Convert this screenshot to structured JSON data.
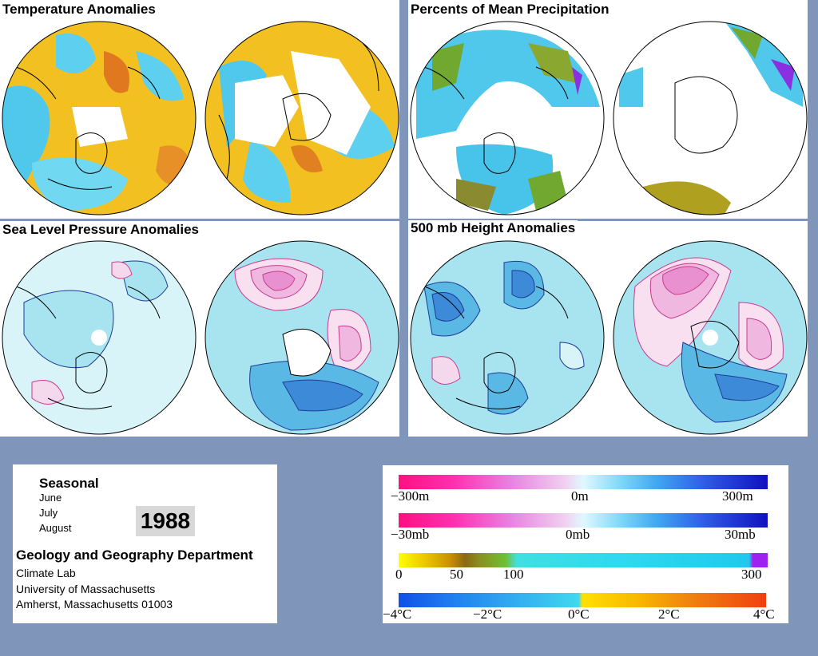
{
  "panels": {
    "temperature": {
      "title": "Temperature Anomalies"
    },
    "precipitation": {
      "title": "Percents of Mean Precipitation"
    },
    "slp": {
      "title": "Sea Level Pressure Anomalies"
    },
    "height500": {
      "title": "500 mb Height Anomalies"
    }
  },
  "info": {
    "period": "Seasonal",
    "months": [
      "June",
      "July",
      "August"
    ],
    "year": "1988",
    "department": "Geology and Geography Department",
    "lab": "Climate Lab",
    "university": "University of Massachusetts",
    "address": "Amherst, Massachusetts 01003"
  },
  "legend": {
    "height": {
      "left": "−300m",
      "mid": "0m",
      "right": "300m"
    },
    "pressure": {
      "left": "−30mb",
      "mid": "0mb",
      "right": "30mb"
    },
    "precip": {
      "t0": "0",
      "t1": "50",
      "t2": "100",
      "t3": "300"
    },
    "temp": {
      "t0": "−4°C",
      "t1": "−2°C",
      "t2": "0°C",
      "t3": "2°C",
      "t4": "4°C"
    }
  },
  "colors": {
    "background": "#7f95b9",
    "warm": "#f0a020",
    "cool": "#40c8e8",
    "positive_contour": "#c83c8c",
    "negative_contour": "#1e3c96"
  }
}
